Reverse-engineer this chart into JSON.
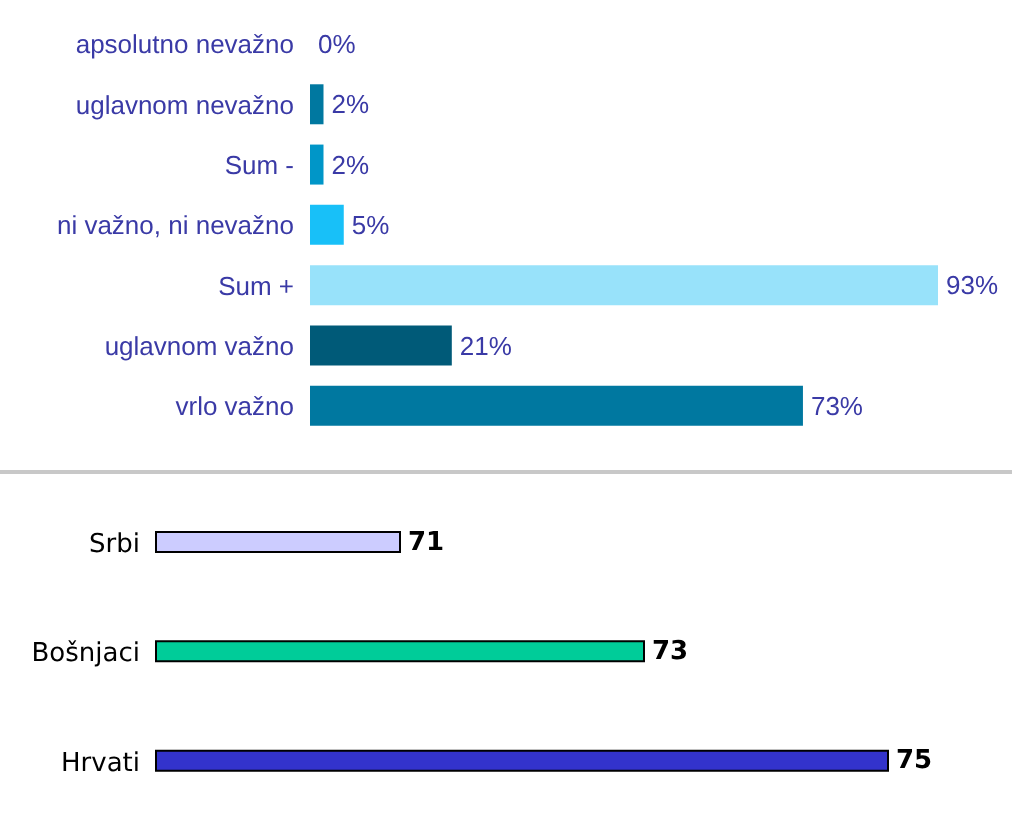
{
  "chart_data": [
    {
      "type": "bar",
      "orientation": "horizontal",
      "categories": [
        "apsolutno nevažno",
        "uglavnom nevažno",
        "Sum -",
        "ni važno, ni nevažno",
        "Sum +",
        "uglavnom važno",
        "vrlo važno"
      ],
      "values": [
        0,
        2,
        2,
        5,
        93,
        21,
        73
      ],
      "colors": [
        "#0078a0",
        "#0078a0",
        "#0096c8",
        "#18c0f8",
        "#98e2fa",
        "#005a78",
        "#0078a0"
      ],
      "value_labels": [
        "0%",
        "2%",
        "2%",
        "5%",
        "93%",
        "21%",
        "73%"
      ],
      "tick_labels": "y"
    },
    {
      "type": "bar",
      "orientation": "horizontal",
      "categories": [
        "Srbi",
        "Bošnjaci",
        "Hrvati"
      ],
      "values": [
        71,
        73,
        75
      ],
      "colors": [
        "#ccccff",
        "#00cc99",
        "#3333cc"
      ],
      "data_labels": true,
      "xlim": [
        69,
        75
      ],
      "tick_labels": "y"
    }
  ]
}
